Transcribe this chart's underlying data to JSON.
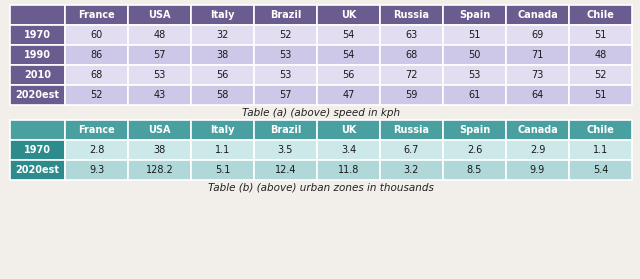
{
  "table_a": {
    "title": "Table (a) (above) speed in kph",
    "columns": [
      "France",
      "USA",
      "Italy",
      "Brazil",
      "UK",
      "Russia",
      "Spain",
      "Canada",
      "Chile"
    ],
    "rows": [
      "1970",
      "1990",
      "2010",
      "2020est"
    ],
    "data": [
      [
        60,
        48,
        32,
        52,
        54,
        63,
        51,
        69,
        51
      ],
      [
        86,
        57,
        38,
        53,
        54,
        68,
        50,
        71,
        48
      ],
      [
        68,
        53,
        56,
        53,
        56,
        72,
        53,
        73,
        52
      ],
      [
        52,
        43,
        58,
        57,
        47,
        59,
        61,
        64,
        51
      ]
    ],
    "header_bg": "#6a5c8e",
    "row_label_bg": "#6a5c8e",
    "row_even_bg": "#e2ddf0",
    "row_odd_bg": "#cdc8e8",
    "header_text_color": "#ffffff",
    "row_label_text_color": "#ffffff",
    "data_text_color": "#1a1a1a"
  },
  "table_b": {
    "title": "Table (b) (above) urban zones in thousands",
    "columns": [
      "France",
      "USA",
      "Italy",
      "Brazil",
      "UK",
      "Russia",
      "Spain",
      "Canada",
      "Chile"
    ],
    "rows": [
      "1970",
      "2020est"
    ],
    "data": [
      [
        "2.8",
        "38",
        "1.1",
        "3.5",
        "3.4",
        "6.7",
        "2.6",
        "2.9",
        "1.1"
      ],
      [
        "9.3",
        "128.2",
        "5.1",
        "12.4",
        "11.8",
        "3.2",
        "8.5",
        "9.9",
        "5.4"
      ]
    ],
    "header_bg": "#4aa0a0",
    "row_label_bg": "#2e8b8b",
    "row_even_bg": "#cce8e8",
    "row_odd_bg": "#b0d8d8",
    "header_text_color": "#ffffff",
    "row_label_text_color": "#ffffff",
    "data_text_color": "#1a1a1a"
  },
  "bg_color": "#f2eeea",
  "figsize": [
    6.4,
    2.79
  ],
  "dpi": 100
}
